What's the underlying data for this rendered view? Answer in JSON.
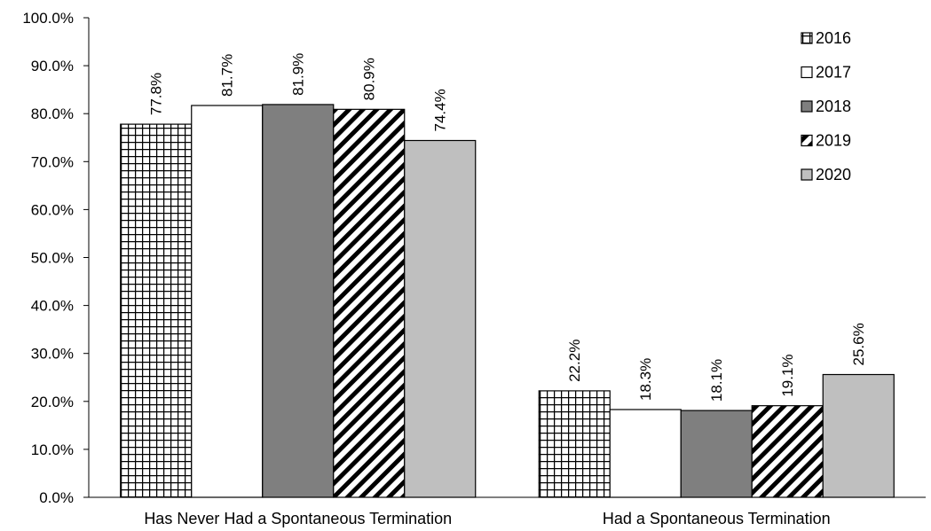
{
  "chart_data": {
    "type": "bar",
    "title": "",
    "xlabel": "",
    "ylabel": "",
    "categories": [
      "Has Never Had a Spontaneous Termination",
      "Had a Spontaneous Termination"
    ],
    "series": [
      {
        "name": "2016",
        "values": [
          77.8,
          22.2
        ],
        "labels": [
          "77.8%",
          "22.2%"
        ],
        "pattern": "grid",
        "color": "#000000"
      },
      {
        "name": "2017",
        "values": [
          81.7,
          18.3
        ],
        "labels": [
          "81.7%",
          "18.3%"
        ],
        "pattern": "solid-white",
        "color": "#ffffff"
      },
      {
        "name": "2018",
        "values": [
          81.9,
          18.1
        ],
        "labels": [
          "81.9%",
          "18.1%"
        ],
        "pattern": "solid",
        "color": "#7f7f7f"
      },
      {
        "name": "2019",
        "values": [
          80.9,
          19.1
        ],
        "labels": [
          "80.9%",
          "19.1%"
        ],
        "pattern": "diagonal-stripes",
        "color": "#000000"
      },
      {
        "name": "2020",
        "values": [
          74.4,
          25.6
        ],
        "labels": [
          "74.4%",
          "25.6%"
        ],
        "pattern": "solid",
        "color": "#bfbfbf"
      }
    ],
    "ylim": [
      0,
      100
    ],
    "yticks": [
      0,
      10,
      20,
      30,
      40,
      50,
      60,
      70,
      80,
      90,
      100
    ],
    "ytick_labels": [
      "0.0%",
      "10.0%",
      "20.0%",
      "30.0%",
      "40.0%",
      "50.0%",
      "60.0%",
      "70.0%",
      "80.0%",
      "90.0%",
      "100.0%"
    ],
    "grid": false,
    "legend_position": "top-right"
  }
}
